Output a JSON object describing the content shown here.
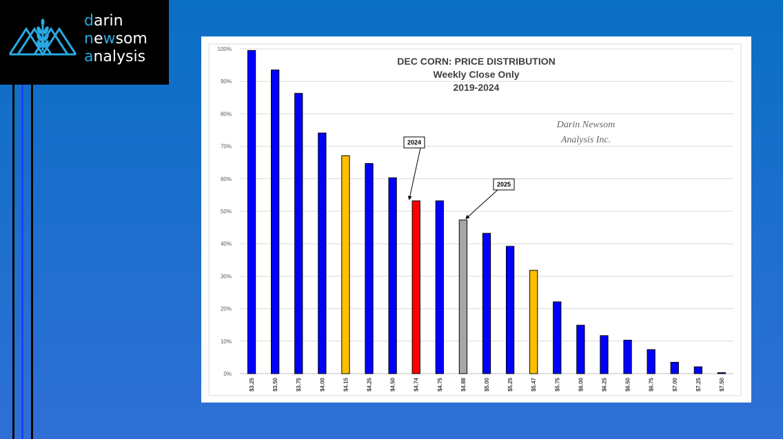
{
  "logo": {
    "line1_initial": "d",
    "line1_rest": "arin",
    "line2_initial": "n",
    "line2_mid": "e",
    "line2_w": "w",
    "line2_rest": "som",
    "line3_initial": "a",
    "line3_rest": "nalysis"
  },
  "colors": {
    "background": "#1a6fcf",
    "bar_default": "#0000ff",
    "bar_highlight": "#ffc000",
    "bar_2024": "#ff0000",
    "bar_2025": "#a6a6a6",
    "logo_accent": "#29a9e0"
  },
  "chart_data": {
    "type": "bar",
    "title_lines": [
      "DEC CORN: PRICE DISTRIBUTION",
      "Weekly Close Only",
      "2019-2024"
    ],
    "watermark_lines": [
      "Darin Newsom",
      "Analysis Inc."
    ],
    "categories": [
      "$3.25",
      "$3.50",
      "$3.75",
      "$4.00",
      "$4.15",
      "$4.25",
      "$4.50",
      "$4.74",
      "$4.75",
      "$4.88",
      "$5.00",
      "$5.25",
      "$5.47",
      "$5.75",
      "$6.00",
      "$6.25",
      "$6.50",
      "$6.75",
      "$7.00",
      "$7.25",
      "$7.50"
    ],
    "values": [
      99.5,
      93.5,
      86.3,
      74.1,
      67.1,
      64.7,
      60.3,
      53.2,
      53.2,
      47.3,
      43.2,
      39.2,
      31.8,
      22.1,
      14.9,
      11.7,
      10.3,
      7.4,
      3.5,
      2.1,
      0.3
    ],
    "bar_colors": [
      "#0000ff",
      "#0000ff",
      "#0000ff",
      "#0000ff",
      "#ffc000",
      "#0000ff",
      "#0000ff",
      "#ff0000",
      "#0000ff",
      "#a6a6a6",
      "#0000ff",
      "#0000ff",
      "#ffc000",
      "#0000ff",
      "#0000ff",
      "#0000ff",
      "#0000ff",
      "#0000ff",
      "#0000ff",
      "#0000ff",
      "#0000ff"
    ],
    "yticks": [
      "0%",
      "10%",
      "20%",
      "30%",
      "40%",
      "50%",
      "60%",
      "70%",
      "80%",
      "90%",
      "100%"
    ],
    "ylim": [
      0,
      100
    ],
    "grid": true,
    "annotations": [
      {
        "text": "2024",
        "category_index": 7
      },
      {
        "text": "2025",
        "category_index": 9
      }
    ]
  }
}
